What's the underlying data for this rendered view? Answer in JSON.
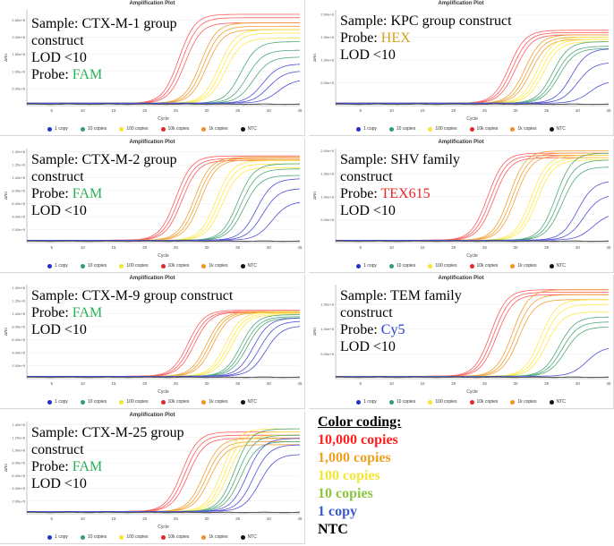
{
  "color_coding": {
    "title": "Color coding:",
    "entries": [
      {
        "label": "10,000 copies",
        "color": "#ff2020"
      },
      {
        "label": "1,000 copies",
        "color": "#f0a020"
      },
      {
        "label": "100 copies",
        "color": "#f5e632"
      },
      {
        "label": "10 copies",
        "color": "#8cc63f"
      },
      {
        "label": "1 copy",
        "color": "#3a5bc7"
      },
      {
        "label": "NTC",
        "color": "#000000"
      }
    ]
  },
  "legend_items": [
    {
      "label": "1 copy",
      "color": "#2233cc"
    },
    {
      "label": "10 copies",
      "color": "#2e9e6b"
    },
    {
      "label": "100 copies",
      "color": "#f5e632"
    },
    {
      "label": "10k copies",
      "color": "#e8242a"
    },
    {
      "label": "1k copies",
      "color": "#f09020"
    },
    {
      "label": "NTC",
      "color": "#111111"
    }
  ],
  "series_colors": {
    "10k": "#ff5a5a",
    "1k": "#f0a030",
    "100": "#ffe94a",
    "10": "#4fa87a",
    "1": "#4f4fd8",
    "ntc": "#222222"
  },
  "chart_data": [
    {
      "type": "line",
      "title": "Amplification Plot",
      "xlabel": "Cycle",
      "ylabel": "ΔRn",
      "xlim": [
        1,
        45
      ],
      "xticks": [
        "5",
        "10",
        "15",
        "20",
        "25",
        "30",
        "35",
        "40",
        "45"
      ],
      "yticks": [
        "5.00e+5",
        "1.00e+6",
        "1.50e+6",
        "2.00e+6",
        "2.50e+6"
      ],
      "ylim": [
        0,
        2800000
      ],
      "overlay": {
        "lines": [
          {
            "segments": [
              {
                "text": "Sample: CTX-M-1 group",
                "color": "#000000"
              }
            ]
          },
          {
            "segments": [
              {
                "text": "construct",
                "color": "#000000"
              }
            ]
          },
          {
            "segments": [
              {
                "text": "LOD <10",
                "color": "#000000"
              }
            ]
          },
          {
            "segments": [
              {
                "text": "Probe: ",
                "color": "#000000"
              },
              {
                "text": "FAM",
                "color": "#2ab057"
              }
            ]
          }
        ]
      },
      "series": [
        {
          "group": "10k",
          "ct": [
            25.5,
            26.0,
            26.5
          ],
          "plateau": [
            2600000,
            2500000,
            2350000
          ]
        },
        {
          "group": "1k",
          "ct": [
            29.0,
            29.5,
            30.0
          ],
          "plateau": [
            2350000,
            2250000,
            2150000
          ]
        },
        {
          "group": "100",
          "ct": [
            32.0,
            32.5,
            33.0
          ],
          "plateau": [
            2150000,
            2050000,
            1900000
          ]
        },
        {
          "group": "10",
          "ct": [
            35.5,
            36.5,
            37.5
          ],
          "plateau": [
            1800000,
            1550000,
            1350000
          ]
        },
        {
          "group": "1",
          "ct": [
            39.0,
            40.0,
            41.5
          ],
          "plateau": [
            1150000,
            950000,
            700000
          ]
        },
        {
          "group": "ntc",
          "ct": [
            99
          ],
          "plateau": [
            0
          ]
        }
      ]
    },
    {
      "type": "line",
      "title": "Amplification Plot",
      "xlabel": "Cycle",
      "ylabel": "ΔRn",
      "xlim": [
        1,
        45
      ],
      "xticks": [
        "5",
        "10",
        "15",
        "20",
        "25",
        "30",
        "35",
        "40",
        "45"
      ],
      "yticks": [
        "5.00e+5",
        "1.00e+6",
        "1.50e+6",
        "2.00e+6"
      ],
      "ylim": [
        0,
        2100000
      ],
      "overlay": {
        "lines": [
          {
            "segments": [
              {
                "text": "Sample: KPC group construct",
                "color": "#000000"
              }
            ]
          },
          {
            "segments": [
              {
                "text": "Probe: ",
                "color": "#000000"
              },
              {
                "text": "HEX",
                "color": "#d4a017"
              }
            ]
          },
          {
            "segments": [
              {
                "text": "LOD <10",
                "color": "#000000"
              }
            ]
          }
        ]
      },
      "series": [
        {
          "group": "10k",
          "ct": [
            29.0,
            29.5,
            30.0
          ],
          "plateau": [
            1600000,
            1550000,
            1500000
          ]
        },
        {
          "group": "1k",
          "ct": [
            31.5,
            32.0,
            32.5
          ],
          "plateau": [
            1500000,
            1450000,
            1400000
          ]
        },
        {
          "group": "100",
          "ct": [
            33.5,
            34.0,
            34.5
          ],
          "plateau": [
            1450000,
            1400000,
            1350000
          ]
        },
        {
          "group": "10",
          "ct": [
            36.0,
            36.5,
            37.0
          ],
          "plateau": [
            1350000,
            1250000,
            1200000
          ]
        },
        {
          "group": "1",
          "ct": [
            39.0,
            40.0,
            42.0
          ],
          "plateau": [
            1200000,
            900000,
            500000
          ]
        },
        {
          "group": "ntc",
          "ct": [
            99
          ],
          "plateau": [
            0
          ]
        }
      ]
    },
    {
      "type": "line",
      "title": "Amplification Plot",
      "xlabel": "Cycle",
      "ylabel": "ΔRn",
      "xlim": [
        1,
        45
      ],
      "xticks": [
        "5",
        "10",
        "15",
        "20",
        "25",
        "30",
        "35",
        "40",
        "45"
      ],
      "yticks": [
        "2.00e+5",
        "4.00e+5",
        "6.00e+5",
        "8.00e+5",
        "1.00e+6",
        "1.20e+6",
        "1.40e+6"
      ],
      "ylim": [
        0,
        1450000
      ],
      "overlay": {
        "lines": [
          {
            "segments": [
              {
                "text": "Sample: CTX-M-2 group",
                "color": "#000000"
              }
            ]
          },
          {
            "segments": [
              {
                "text": "construct",
                "color": "#000000"
              }
            ]
          },
          {
            "segments": [
              {
                "text": "Probe: ",
                "color": "#000000"
              },
              {
                "text": "FAM",
                "color": "#2ab057"
              }
            ]
          },
          {
            "segments": [
              {
                "text": "LOD <10",
                "color": "#000000"
              }
            ]
          }
        ]
      },
      "series": [
        {
          "group": "10k",
          "ct": [
            25.0,
            25.5,
            26.0
          ],
          "plateau": [
            1300000,
            1260000,
            1230000
          ]
        },
        {
          "group": "1k",
          "ct": [
            28.0,
            28.5,
            29.0
          ],
          "plateau": [
            1280000,
            1260000,
            1240000
          ]
        },
        {
          "group": "100",
          "ct": [
            31.5,
            32.0,
            32.5
          ],
          "plateau": [
            1230000,
            1180000,
            1120000
          ]
        },
        {
          "group": "10",
          "ct": [
            35.0,
            35.5,
            36.0
          ],
          "plateau": [
            1180000,
            1100000,
            1000000
          ]
        },
        {
          "group": "1",
          "ct": [
            38.0,
            39.0,
            40.5
          ],
          "plateau": [
            950000,
            800000,
            600000
          ]
        },
        {
          "group": "ntc",
          "ct": [
            99
          ],
          "plateau": [
            0
          ]
        }
      ]
    },
    {
      "type": "line",
      "title": "Amplification Plot",
      "xlabel": "Cycle",
      "ylabel": "ΔRn",
      "xlim": [
        1,
        45
      ],
      "xticks": [
        "5",
        "10",
        "15",
        "20",
        "25",
        "30",
        "35",
        "40",
        "45"
      ],
      "yticks": [
        "5.00e+5",
        "1.00e+6",
        "1.50e+6",
        "2.00e+6"
      ],
      "ylim": [
        0,
        2050000
      ],
      "overlay": {
        "lines": [
          {
            "segments": [
              {
                "text": "Sample: SHV family",
                "color": "#000000"
              }
            ]
          },
          {
            "segments": [
              {
                "text": "construct",
                "color": "#000000"
              }
            ]
          },
          {
            "segments": [
              {
                "text": "Probe: ",
                "color": "#000000"
              },
              {
                "text": "TEX615",
                "color": "#e8242a"
              }
            ]
          },
          {
            "segments": [
              {
                "text": "LOD <10",
                "color": "#000000"
              }
            ]
          }
        ]
      },
      "series": [
        {
          "group": "10k",
          "ct": [
            25.5,
            26.0,
            26.5
          ],
          "plateau": [
            1900000,
            1850000,
            1800000
          ]
        },
        {
          "group": "1k",
          "ct": [
            29.0,
            29.5,
            30.0
          ],
          "plateau": [
            1950000,
            1900000,
            1850000
          ]
        },
        {
          "group": "100",
          "ct": [
            32.5,
            33.0,
            33.5
          ],
          "plateau": [
            1850000,
            1800000,
            1750000
          ]
        },
        {
          "group": "10",
          "ct": [
            36.5,
            37.0,
            37.5
          ],
          "plateau": [
            1900000,
            1750000,
            1600000
          ]
        },
        {
          "group": "1",
          "ct": [
            40.0,
            41.0,
            42.5
          ],
          "plateau": [
            1300000,
            1000000,
            600000
          ]
        },
        {
          "group": "ntc",
          "ct": [
            99
          ],
          "plateau": [
            0
          ]
        }
      ]
    },
    {
      "type": "line",
      "title": "Amplification Plot",
      "xlabel": "Cycle",
      "ylabel": "ΔRn",
      "xlim": [
        1,
        45
      ],
      "xticks": [
        "5",
        "10",
        "15",
        "20",
        "25",
        "30",
        "35",
        "40",
        "45"
      ],
      "yticks": [
        "2.00e+5",
        "4.00e+5",
        "6.00e+5",
        "8.00e+5",
        "1.00e+6",
        "1.20e+6",
        "1.40e+6"
      ],
      "ylim": [
        0,
        1450000
      ],
      "overlay": {
        "lines": [
          {
            "segments": [
              {
                "text": "Sample: CTX-M-9 group construct",
                "color": "#000000"
              }
            ]
          },
          {
            "segments": [
              {
                "text": "Probe: ",
                "color": "#000000"
              },
              {
                "text": "FAM",
                "color": "#2ab057"
              }
            ]
          },
          {
            "segments": [
              {
                "text": "LOD <10",
                "color": "#000000"
              }
            ]
          }
        ]
      },
      "series": [
        {
          "group": "10k",
          "ct": [
            27.0,
            27.5,
            28.0
          ],
          "plateau": [
            1020000,
            1000000,
            990000
          ]
        },
        {
          "group": "1k",
          "ct": [
            30.0,
            30.5,
            31.0
          ],
          "plateau": [
            1000000,
            990000,
            980000
          ]
        },
        {
          "group": "100",
          "ct": [
            33.0,
            33.5,
            34.0
          ],
          "plateau": [
            990000,
            970000,
            950000
          ]
        },
        {
          "group": "10",
          "ct": [
            35.5,
            36.0,
            36.5
          ],
          "plateau": [
            950000,
            920000,
            900000
          ]
        },
        {
          "group": "1",
          "ct": [
            37.5,
            38.5,
            39.5
          ],
          "plateau": [
            900000,
            850000,
            780000
          ]
        },
        {
          "group": "ntc",
          "ct": [
            99
          ],
          "plateau": [
            0
          ]
        }
      ]
    },
    {
      "type": "line",
      "title": "Amplification Plot",
      "xlabel": "Cycle",
      "ylabel": "ΔRn",
      "xlim": [
        1,
        45
      ],
      "xticks": [
        "5",
        "10",
        "15",
        "20",
        "25",
        "30",
        "35",
        "40",
        "45"
      ],
      "yticks": [
        "5.00e+5",
        "1.00e+6",
        "1.50e+6"
      ],
      "ylim": [
        0,
        1900000
      ],
      "overlay": {
        "lines": [
          {
            "segments": [
              {
                "text": "Sample: TEM family",
                "color": "#000000"
              }
            ]
          },
          {
            "segments": [
              {
                "text": "construct",
                "color": "#000000"
              }
            ]
          },
          {
            "segments": [
              {
                "text": "Probe: ",
                "color": "#000000"
              },
              {
                "text": "Cy5",
                "color": "#1f3fd0"
              }
            ]
          },
          {
            "segments": [
              {
                "text": "LOD <10",
                "color": "#000000"
              }
            ]
          }
        ]
      },
      "series": [
        {
          "group": "10k",
          "ct": [
            26.0,
            26.5,
            27.0
          ],
          "plateau": [
            1750000,
            1700000,
            1650000
          ]
        },
        {
          "group": "1k",
          "ct": [
            29.5,
            30.0,
            30.5
          ],
          "plateau": [
            1750000,
            1650000,
            1550000
          ]
        },
        {
          "group": "100",
          "ct": [
            34.0,
            34.5,
            35.0
          ],
          "plateau": [
            1550000,
            1450000,
            1300000
          ]
        },
        {
          "group": "10",
          "ct": [
            37.0,
            37.5,
            38.0
          ],
          "plateau": [
            1200000,
            1100000,
            1000000
          ]
        },
        {
          "group": "1",
          "ct": [
            41.5
          ],
          "plateau": [
            600000
          ]
        },
        {
          "group": "ntc",
          "ct": [
            99
          ],
          "plateau": [
            0
          ]
        }
      ]
    },
    {
      "type": "line",
      "title": "Amplification Plot",
      "xlabel": "Cycle",
      "ylabel": "ΔRn",
      "xlim": [
        1,
        45
      ],
      "xticks": [
        "5",
        "10",
        "15",
        "20",
        "25",
        "30",
        "35",
        "40",
        "45"
      ],
      "yticks": [
        "2.00e+5",
        "4.00e+5",
        "6.00e+5",
        "8.00e+5",
        "1.00e+6",
        "1.20e+6",
        "1.40e+6"
      ],
      "ylim": [
        0,
        1450000
      ],
      "overlay": {
        "lines": [
          {
            "segments": [
              {
                "text": "Sample: CTX-M-25 group",
                "color": "#000000"
              }
            ]
          },
          {
            "segments": [
              {
                "text": "construct",
                "color": "#000000"
              }
            ]
          },
          {
            "segments": [
              {
                "text": "Probe: ",
                "color": "#000000"
              },
              {
                "text": "FAM",
                "color": "#2ab057"
              }
            ]
          },
          {
            "segments": [
              {
                "text": "LOD <10",
                "color": "#000000"
              }
            ]
          }
        ]
      },
      "series": [
        {
          "group": "10k",
          "ct": [
            26.0,
            26.5,
            27.0
          ],
          "plateau": [
            1250000,
            1200000,
            1150000
          ]
        },
        {
          "group": "1k",
          "ct": [
            29.5,
            30.0,
            30.5
          ],
          "plateau": [
            1150000,
            1100000,
            1050000
          ]
        },
        {
          "group": "100",
          "ct": [
            32.5,
            33.0,
            33.5
          ],
          "plateau": [
            1300000,
            1250000,
            1200000
          ]
        },
        {
          "group": "10",
          "ct": [
            34.5,
            35.0,
            35.5
          ],
          "plateau": [
            1300000,
            1200000,
            1100000
          ]
        },
        {
          "group": "1",
          "ct": [
            36.5,
            37.5,
            38.5
          ],
          "plateau": [
            1150000,
            1050000,
            900000
          ]
        },
        {
          "group": "ntc",
          "ct": [
            99
          ],
          "plateau": [
            0
          ]
        }
      ]
    }
  ]
}
